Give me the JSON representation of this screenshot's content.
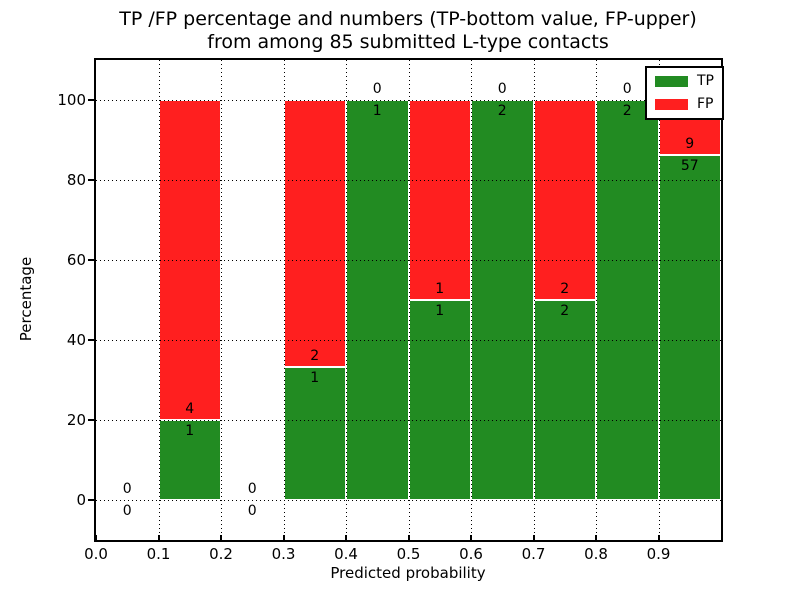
{
  "figure": {
    "title_line1": "TP /FP percentage and numbers (TP-bottom value, FP-upper)",
    "title_line2": "from among 85 submitted L-type contacts"
  },
  "chart_data": {
    "type": "bar",
    "stacked": true,
    "title": "TP /FP percentage and numbers (TP-bottom value, FP-upper) from among 85 submitted L-type contacts",
    "xlabel": "Predicted probability",
    "ylabel": "Percentage",
    "xlim": [
      0.0,
      1.0
    ],
    "ylim": [
      -10,
      110
    ],
    "grid": "dotted",
    "legend_position": "upper right",
    "colors": {
      "tp": "#228b22",
      "fp": "#ff1f1f",
      "axis": "#000000",
      "background": "#ffffff"
    },
    "legend": [
      {
        "label": "TP",
        "color_key": "tp"
      },
      {
        "label": "FP",
        "color_key": "fp"
      }
    ],
    "xticks": [
      {
        "value": 0.0,
        "label": "0.0"
      },
      {
        "value": 0.1,
        "label": "0.1"
      },
      {
        "value": 0.2,
        "label": "0.2"
      },
      {
        "value": 0.3,
        "label": "0.3"
      },
      {
        "value": 0.4,
        "label": "0.4"
      },
      {
        "value": 0.5,
        "label": "0.5"
      },
      {
        "value": 0.6,
        "label": "0.6"
      },
      {
        "value": 0.7,
        "label": "0.7"
      },
      {
        "value": 0.8,
        "label": "0.8"
      },
      {
        "value": 0.9,
        "label": "0.9"
      }
    ],
    "yticks": [
      {
        "value": 0,
        "label": "0"
      },
      {
        "value": 20,
        "label": "20"
      },
      {
        "value": 40,
        "label": "40"
      },
      {
        "value": 60,
        "label": "60"
      },
      {
        "value": 80,
        "label": "80"
      },
      {
        "value": 100,
        "label": "100"
      }
    ],
    "bins": [
      {
        "x0": 0.0,
        "x1": 0.1,
        "tp": 0,
        "fp": 0
      },
      {
        "x0": 0.1,
        "x1": 0.2,
        "tp": 1,
        "fp": 4
      },
      {
        "x0": 0.2,
        "x1": 0.3,
        "tp": 0,
        "fp": 0
      },
      {
        "x0": 0.3,
        "x1": 0.4,
        "tp": 1,
        "fp": 2
      },
      {
        "x0": 0.4,
        "x1": 0.5,
        "tp": 1,
        "fp": 0
      },
      {
        "x0": 0.5,
        "x1": 0.6,
        "tp": 1,
        "fp": 1
      },
      {
        "x0": 0.6,
        "x1": 0.7,
        "tp": 2,
        "fp": 0
      },
      {
        "x0": 0.7,
        "x1": 0.8,
        "tp": 2,
        "fp": 2
      },
      {
        "x0": 0.8,
        "x1": 0.9,
        "tp": 2,
        "fp": 0
      },
      {
        "x0": 0.9,
        "x1": 1.0,
        "tp": 57,
        "fp": 9
      }
    ]
  }
}
